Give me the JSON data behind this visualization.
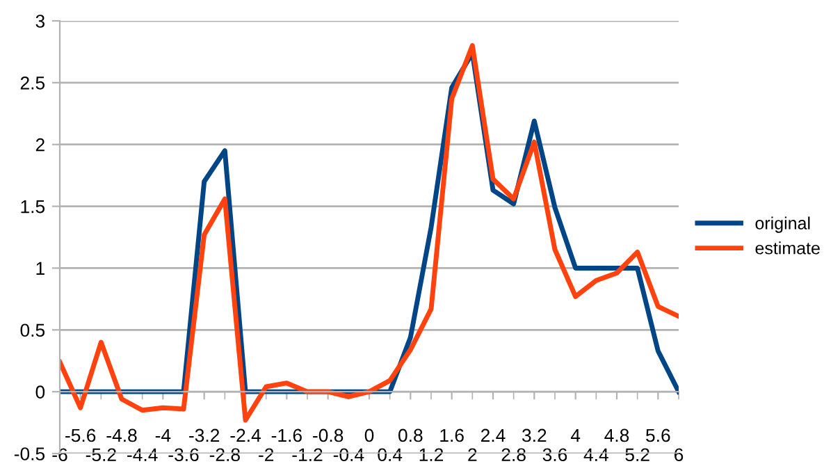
{
  "chart_data": {
    "type": "line",
    "categories": [
      "-6",
      "-5.6",
      "-5.2",
      "-4.8",
      "-4.4",
      "-4",
      "-3.6",
      "-3.2",
      "-2.8",
      "-2.4",
      "-2",
      "-1.6",
      "-1.2",
      "-0.8",
      "-0.4",
      "0",
      "0.4",
      "0.8",
      "1.2",
      "1.6",
      "2",
      "2.4",
      "2.8",
      "3.2",
      "3.6",
      "4",
      "4.4",
      "4.8",
      "5.2",
      "5.6",
      "6"
    ],
    "series": [
      {
        "name": "original",
        "color": "#004586",
        "values": [
          0,
          0,
          0,
          0,
          0,
          0,
          0,
          1.7,
          1.95,
          0,
          0,
          0,
          0,
          0,
          0,
          0,
          0,
          0.44,
          1.33,
          2.46,
          2.74,
          1.63,
          1.52,
          2.19,
          1.49,
          1.0,
          1.0,
          1.0,
          1.0,
          0.33,
          0
        ]
      },
      {
        "name": "estimate",
        "color": "#ff420e",
        "values": [
          0.24,
          -0.13,
          0.4,
          -0.06,
          -0.15,
          -0.13,
          -0.14,
          1.27,
          1.56,
          -0.23,
          0.04,
          0.07,
          0.0,
          0.0,
          -0.04,
          0.0,
          0.09,
          0.34,
          0.67,
          2.37,
          2.8,
          1.72,
          1.56,
          2.02,
          1.15,
          0.77,
          0.9,
          0.96,
          1.13,
          0.69,
          0.61
        ]
      }
    ],
    "ylim": [
      -0.5,
      3
    ],
    "yticks": [
      -0.5,
      0,
      0.5,
      1,
      1.5,
      2,
      2.5,
      3
    ],
    "grid": "y",
    "legend": "right",
    "marker": "none",
    "line_style": "solid"
  }
}
